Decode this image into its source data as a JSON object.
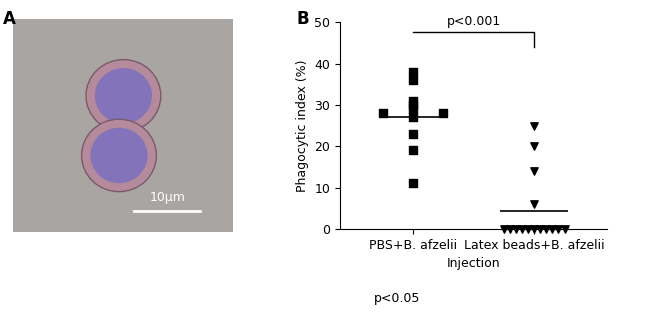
{
  "panel_a": {
    "label": "A",
    "scale_bar_label": "10μm"
  },
  "chart_data": {
    "type": "scatter",
    "panel_label": "B",
    "y_label": "Phagocytic index (%)",
    "x_label": "Injection",
    "categories": [
      "PBS+B. afzelii",
      "Latex beads+B. afzelii"
    ],
    "groups": [
      {
        "category": "PBS+B. afzelii",
        "marker": "square",
        "values": [
          38,
          36,
          31,
          30,
          29,
          28,
          28,
          27,
          23,
          19,
          11
        ],
        "mean": 27
      },
      {
        "category": "Latex beads+B. afzelii",
        "marker": "triangle_down",
        "values": [
          25,
          20,
          14,
          6,
          0,
          0,
          0,
          0,
          0,
          0,
          0,
          0,
          0,
          0,
          0
        ],
        "mean": 4.3
      }
    ],
    "color": "#000000",
    "annotations": [
      "p<0.001"
    ],
    "ylim": [
      0,
      50
    ],
    "yticks": [
      0,
      10,
      20,
      30,
      40,
      50
    ],
    "grid": false
  },
  "footnote": "p<0.05"
}
